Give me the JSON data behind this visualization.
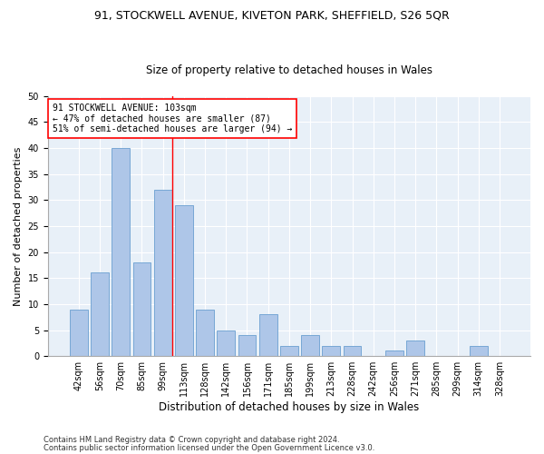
{
  "title": "91, STOCKWELL AVENUE, KIVETON PARK, SHEFFIELD, S26 5QR",
  "subtitle": "Size of property relative to detached houses in Wales",
  "xlabel": "Distribution of detached houses by size in Wales",
  "ylabel": "Number of detached properties",
  "bar_labels": [
    "42sqm",
    "56sqm",
    "70sqm",
    "85sqm",
    "99sqm",
    "113sqm",
    "128sqm",
    "142sqm",
    "156sqm",
    "171sqm",
    "185sqm",
    "199sqm",
    "213sqm",
    "228sqm",
    "242sqm",
    "256sqm",
    "271sqm",
    "285sqm",
    "299sqm",
    "314sqm",
    "328sqm"
  ],
  "bar_values": [
    9,
    16,
    40,
    18,
    32,
    29,
    9,
    5,
    4,
    8,
    2,
    4,
    2,
    2,
    0,
    1,
    3,
    0,
    0,
    2,
    0
  ],
  "bar_color": "#aec6e8",
  "bar_edge_color": "#6a9fd0",
  "red_line_bin": 4,
  "annotation_line1": "91 STOCKWELL AVENUE: 103sqm",
  "annotation_line2": "← 47% of detached houses are smaller (87)",
  "annotation_line3": "51% of semi-detached houses are larger (94) →",
  "ylim": [
    0,
    50
  ],
  "yticks": [
    0,
    5,
    10,
    15,
    20,
    25,
    30,
    35,
    40,
    45,
    50
  ],
  "footnote1": "Contains HM Land Registry data © Crown copyright and database right 2024.",
  "footnote2": "Contains public sector information licensed under the Open Government Licence v3.0.",
  "plot_bg_color": "#e8f0f8",
  "title_fontsize": 9,
  "subtitle_fontsize": 8.5,
  "ylabel_fontsize": 8,
  "xlabel_fontsize": 8.5,
  "annotation_fontsize": 7,
  "tick_fontsize": 7,
  "footnote_fontsize": 6
}
